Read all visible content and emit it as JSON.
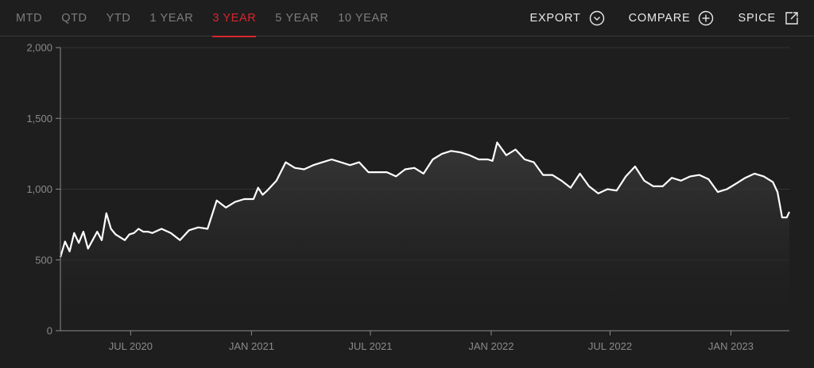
{
  "tabs": [
    {
      "label": "MTD",
      "active": false
    },
    {
      "label": "QTD",
      "active": false
    },
    {
      "label": "YTD",
      "active": false
    },
    {
      "label": "1 YEAR",
      "active": false
    },
    {
      "label": "3 YEAR",
      "active": true
    },
    {
      "label": "5 YEAR",
      "active": false
    },
    {
      "label": "10 YEAR",
      "active": false
    }
  ],
  "actions": {
    "export_label": "EXPORT",
    "export_icon": "chevron-down-circle-icon",
    "compare_label": "COMPARE",
    "compare_icon": "plus-circle-icon",
    "spice_label": "SPICE",
    "spice_icon": "external-link-icon"
  },
  "colors": {
    "accent": "#d6262e",
    "line": "#ffffff",
    "background": "#1e1e1e"
  },
  "chart_data": {
    "type": "area",
    "title": "",
    "xlabel": "",
    "ylabel": "",
    "grid": true,
    "ylim": [
      0,
      2000
    ],
    "xlim": [
      "2020-03-16",
      "2023-03-31"
    ],
    "y_ticks": [
      {
        "value": 0,
        "label": "0"
      },
      {
        "value": 500,
        "label": "500"
      },
      {
        "value": 1000,
        "label": "1,000"
      },
      {
        "value": 1500,
        "label": "1,500"
      },
      {
        "value": 2000,
        "label": "2,000"
      }
    ],
    "x_ticks": [
      {
        "value": "2020-07-01",
        "label": "JUL 2020"
      },
      {
        "value": "2021-01-01",
        "label": "JAN 2021"
      },
      {
        "value": "2021-07-01",
        "label": "JUL 2021"
      },
      {
        "value": "2022-01-01",
        "label": "JAN 2022"
      },
      {
        "value": "2022-07-01",
        "label": "JUL 2022"
      },
      {
        "value": "2023-01-01",
        "label": "JAN 2023"
      }
    ],
    "series": [
      {
        "x": [
          "2020-03-16",
          "2020-03-23",
          "2020-03-30",
          "2020-04-06",
          "2020-04-13",
          "2020-04-20",
          "2020-04-27",
          "2020-05-04",
          "2020-05-11",
          "2020-05-18",
          "2020-05-25",
          "2020-06-01",
          "2020-06-08",
          "2020-06-15",
          "2020-06-22",
          "2020-06-29",
          "2020-07-06",
          "2020-07-13",
          "2020-07-20",
          "2020-07-27",
          "2020-08-03",
          "2020-08-17",
          "2020-08-31",
          "2020-09-14",
          "2020-09-28",
          "2020-10-12",
          "2020-10-26",
          "2020-11-09",
          "2020-11-23",
          "2020-12-07",
          "2020-12-21",
          "2021-01-04",
          "2021-01-11",
          "2021-01-18",
          "2021-01-25",
          "2021-02-08",
          "2021-02-22",
          "2021-03-08",
          "2021-03-22",
          "2021-04-05",
          "2021-04-19",
          "2021-05-03",
          "2021-05-17",
          "2021-05-31",
          "2021-06-14",
          "2021-06-28",
          "2021-07-12",
          "2021-07-26",
          "2021-08-09",
          "2021-08-23",
          "2021-09-06",
          "2021-09-20",
          "2021-10-04",
          "2021-10-18",
          "2021-11-01",
          "2021-11-15",
          "2021-11-29",
          "2021-12-13",
          "2021-12-27",
          "2022-01-03",
          "2022-01-10",
          "2022-01-24",
          "2022-02-07",
          "2022-02-21",
          "2022-03-07",
          "2022-03-21",
          "2022-04-04",
          "2022-04-18",
          "2022-05-02",
          "2022-05-16",
          "2022-05-30",
          "2022-06-13",
          "2022-06-27",
          "2022-07-11",
          "2022-07-25",
          "2022-08-08",
          "2022-08-22",
          "2022-09-05",
          "2022-09-19",
          "2022-10-03",
          "2022-10-17",
          "2022-10-31",
          "2022-11-14",
          "2022-11-28",
          "2022-12-12",
          "2022-12-26",
          "2023-01-09",
          "2023-01-23",
          "2023-02-06",
          "2023-02-20",
          "2023-03-06",
          "2023-03-13",
          "2023-03-20",
          "2023-03-27",
          "2023-03-31"
        ],
        "values": [
          520,
          630,
          560,
          690,
          620,
          700,
          580,
          640,
          700,
          640,
          830,
          720,
          680,
          660,
          640,
          680,
          690,
          720,
          700,
          700,
          690,
          720,
          690,
          640,
          710,
          730,
          720,
          920,
          870,
          910,
          930,
          930,
          1010,
          960,
          990,
          1060,
          1190,
          1150,
          1140,
          1170,
          1190,
          1210,
          1190,
          1170,
          1190,
          1120,
          1120,
          1120,
          1090,
          1140,
          1150,
          1110,
          1210,
          1250,
          1270,
          1260,
          1240,
          1210,
          1210,
          1200,
          1330,
          1240,
          1280,
          1210,
          1190,
          1100,
          1100,
          1060,
          1010,
          1110,
          1020,
          970,
          1000,
          990,
          1090,
          1160,
          1060,
          1020,
          1020,
          1080,
          1060,
          1090,
          1100,
          1070,
          980,
          1000,
          1040,
          1080,
          1110,
          1090,
          1050,
          980,
          800,
          800,
          840
        ]
      }
    ]
  }
}
